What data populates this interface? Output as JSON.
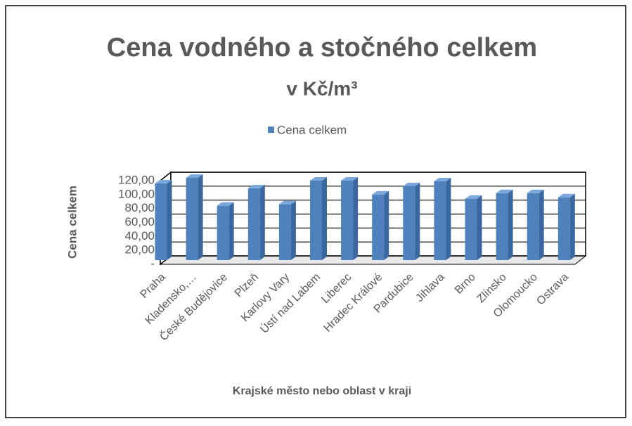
{
  "chart_data": {
    "type": "bar3d",
    "title": "Cena vodného a stočného celkem",
    "subtitle": "v Kč/m³",
    "y_label": "Cena celkem",
    "x_label": "Krajské město nebo oblast v kraji",
    "categories": [
      "Praha",
      "Kladensko,…",
      "České Budějovice",
      "Plzeň",
      "Karlovy Vary",
      "Ústí nad Labem",
      "Liberec",
      "Hradec Králové",
      "Pardubice",
      "Jihlava",
      "Brno",
      "Zlínsko",
      "Olomoucko",
      "Ostrava"
    ],
    "series": [
      {
        "name": "Cena celkem",
        "color": "#4f81bd",
        "values": [
          110,
          118,
          78,
          103,
          80,
          114,
          114,
          94,
          106,
          113,
          88,
          96,
          96,
          90
        ]
      }
    ],
    "ylim": [
      0,
      120
    ],
    "yticks": [
      {
        "value": 0,
        "label": "-"
      },
      {
        "value": 20,
        "label": "20,00"
      },
      {
        "value": 40,
        "label": "40,00"
      },
      {
        "value": 60,
        "label": "60,00"
      },
      {
        "value": 80,
        "label": "80,00"
      },
      {
        "value": 100,
        "label": "100,00"
      },
      {
        "value": 120,
        "label": "120,00"
      }
    ],
    "grid": true,
    "legend": "top"
  }
}
